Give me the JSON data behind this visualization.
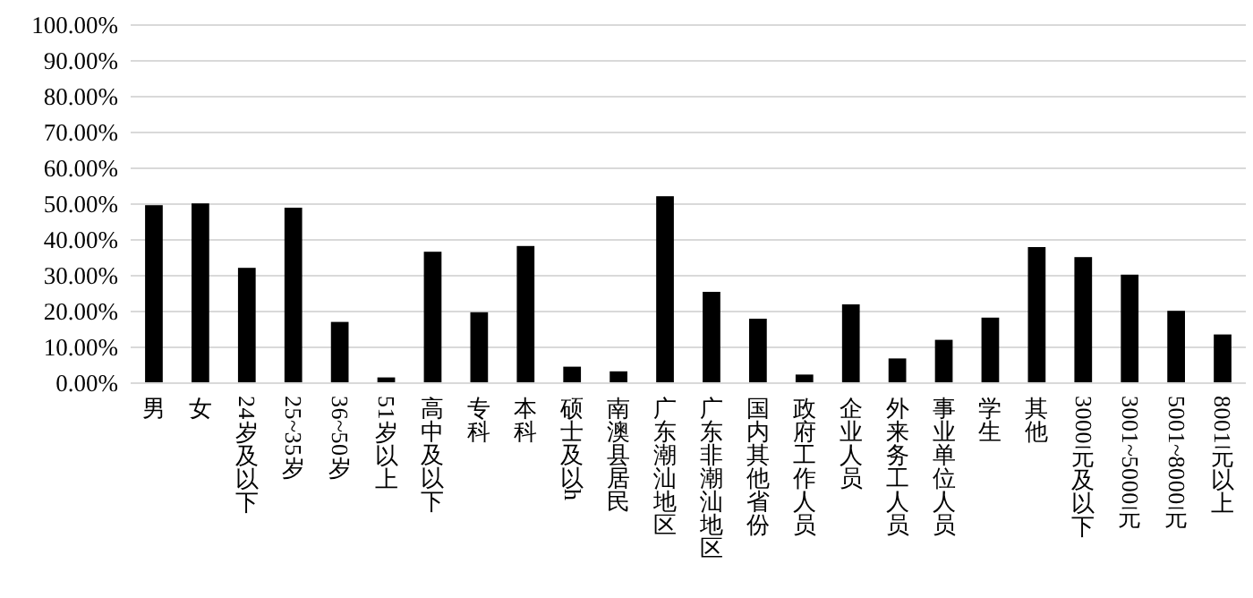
{
  "chart_data": {
    "type": "bar",
    "categories": [
      "男",
      "女",
      "24岁及以下",
      "25~35岁",
      "36~50岁",
      "51岁以上",
      "高中及以下",
      "专科",
      "本科",
      "硕士及以h",
      "南澳县居民",
      "广东潮汕地区",
      "广东非潮汕地区",
      "国内其他省份",
      "政府工作人员",
      "企业人员",
      "外来务工人员",
      "事业单位人员",
      "学生",
      "其他",
      "3000元及以下",
      "3001~5000元",
      "5001~8000元",
      "8001元以上"
    ],
    "values": [
      49.7,
      50.2,
      32.2,
      49.0,
      17.1,
      1.6,
      36.7,
      19.8,
      38.3,
      4.6,
      3.3,
      52.2,
      25.5,
      18.0,
      2.4,
      22.0,
      6.9,
      12.1,
      18.3,
      38.0,
      35.2,
      30.3,
      20.2,
      13.6
    ],
    "color": "#000000",
    "ylim": [
      0,
      100
    ],
    "yticks": [
      {
        "value": 0,
        "label": "0.00%"
      },
      {
        "value": 10,
        "label": "10.00%"
      },
      {
        "value": 20,
        "label": "20.00%"
      },
      {
        "value": 30,
        "label": "30.00%"
      },
      {
        "value": 40,
        "label": "40.00%"
      },
      {
        "value": 50,
        "label": "50.00%"
      },
      {
        "value": 60,
        "label": "60.00%"
      },
      {
        "value": 70,
        "label": "70.00%"
      },
      {
        "value": 80,
        "label": "80.00%"
      },
      {
        "value": 90,
        "label": "90.00%"
      },
      {
        "value": 100,
        "label": "100.00%"
      }
    ],
    "grid": "y"
  }
}
